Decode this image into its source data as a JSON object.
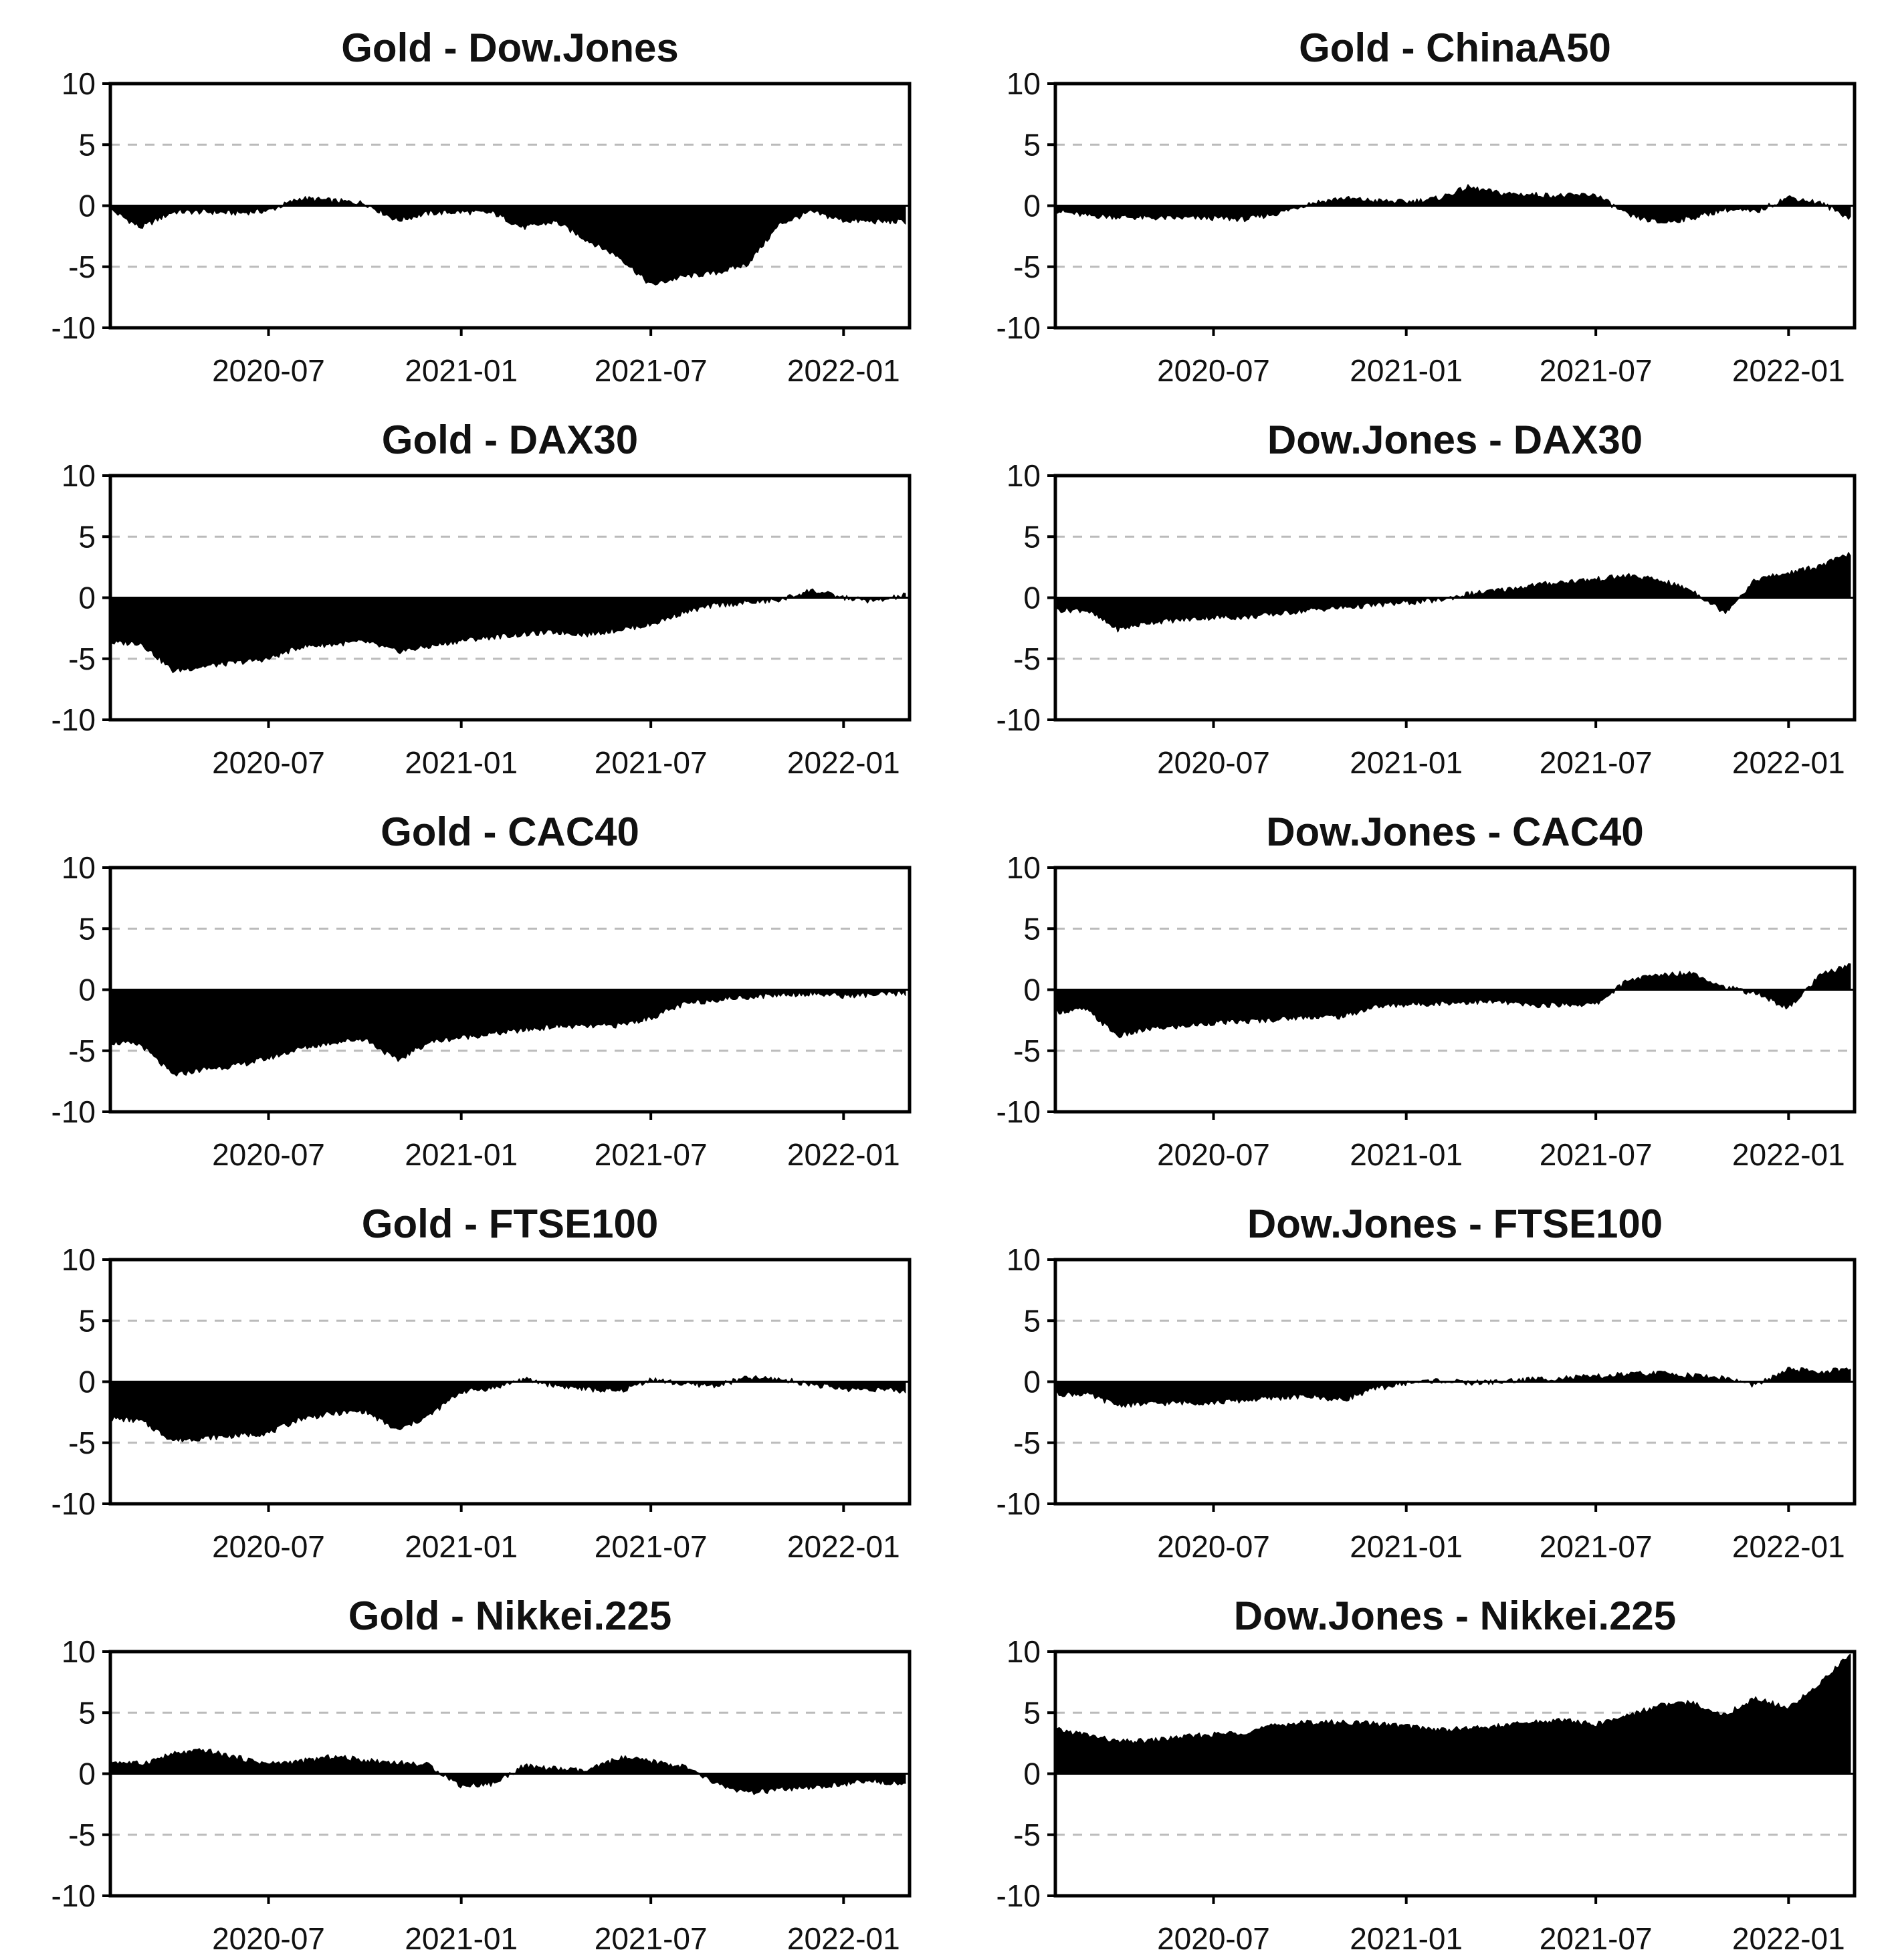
{
  "figure": {
    "yticks": [
      10,
      5,
      0,
      -5,
      -10
    ],
    "xticks": [
      "2020-07",
      "2021-01",
      "2021-07",
      "2022-01"
    ]
  },
  "chart_data": [
    {
      "type": "area",
      "title": "Gold - Dow.Jones",
      "x_range": [
        "2020-02",
        "2022-03"
      ],
      "ylim": [
        -10,
        10
      ],
      "grid": "dashed at ±5",
      "x": [
        "2020-02",
        "2020-03",
        "2020-04",
        "2020-05",
        "2020-06",
        "2020-07",
        "2020-08",
        "2020-09",
        "2020-10",
        "2020-11",
        "2020-12",
        "2021-01",
        "2021-02",
        "2021-03",
        "2021-04",
        "2021-05",
        "2021-06",
        "2021-07",
        "2021-08",
        "2021-09",
        "2021-10",
        "2021-11",
        "2021-12",
        "2022-01",
        "2022-02",
        "2022-03"
      ],
      "values": [
        -0.3,
        -1.8,
        -0.5,
        -0.5,
        -0.6,
        -0.4,
        0.6,
        0.4,
        0.2,
        -1.2,
        -0.6,
        -0.5,
        -0.6,
        -1.8,
        -1.3,
        -2.8,
        -4.2,
        -6.5,
        -5.8,
        -5.5,
        -4.8,
        -1.5,
        -0.5,
        -1.2,
        -1.3,
        -1.3
      ]
    },
    {
      "type": "area",
      "title": "Gold - ChinaA50",
      "x_range": [
        "2020-02",
        "2022-03"
      ],
      "ylim": [
        -10,
        10
      ],
      "grid": "dashed at ±5",
      "x": [
        "2020-02",
        "2020-03",
        "2020-04",
        "2020-05",
        "2020-06",
        "2020-07",
        "2020-08",
        "2020-09",
        "2020-10",
        "2020-11",
        "2020-12",
        "2021-01",
        "2021-02",
        "2021-03",
        "2021-04",
        "2021-05",
        "2021-06",
        "2021-07",
        "2021-08",
        "2021-09",
        "2021-10",
        "2021-11",
        "2021-12",
        "2022-01",
        "2022-02",
        "2022-03"
      ],
      "values": [
        -0.4,
        -0.8,
        -0.9,
        -1.0,
        -1.0,
        -1.0,
        -1.1,
        -0.6,
        0.2,
        0.6,
        0.4,
        0.3,
        0.6,
        1.5,
        1.0,
        0.9,
        0.8,
        0.9,
        -0.8,
        -1.4,
        -1.0,
        -0.3,
        -0.5,
        0.7,
        0.2,
        -1.0
      ]
    },
    {
      "type": "area",
      "title": "Gold - DAX30",
      "x_range": [
        "2020-02",
        "2022-03"
      ],
      "ylim": [
        -10,
        10
      ],
      "grid": "dashed at ±5",
      "x": [
        "2020-02",
        "2020-03",
        "2020-04",
        "2020-05",
        "2020-06",
        "2020-07",
        "2020-08",
        "2020-09",
        "2020-10",
        "2020-11",
        "2020-12",
        "2021-01",
        "2021-02",
        "2021-03",
        "2021-04",
        "2021-05",
        "2021-06",
        "2021-07",
        "2021-08",
        "2021-09",
        "2021-10",
        "2021-11",
        "2021-12",
        "2022-01",
        "2022-02",
        "2022-03"
      ],
      "values": [
        -3.7,
        -3.7,
        -6.0,
        -5.6,
        -5.3,
        -5.0,
        -4.0,
        -3.8,
        -3.6,
        -4.4,
        -4.0,
        -3.5,
        -3.2,
        -3.0,
        -2.8,
        -3.0,
        -2.6,
        -2.2,
        -1.2,
        -0.6,
        -0.4,
        -0.2,
        0.6,
        0.0,
        -0.3,
        0.2
      ]
    },
    {
      "type": "area",
      "title": "Dow.Jones - DAX30",
      "x_range": [
        "2020-02",
        "2022-03"
      ],
      "ylim": [
        -10,
        10
      ],
      "grid": "dashed at ±5",
      "x": [
        "2020-02",
        "2020-03",
        "2020-04",
        "2020-05",
        "2020-06",
        "2020-07",
        "2020-08",
        "2020-09",
        "2020-10",
        "2020-11",
        "2020-12",
        "2021-01",
        "2021-02",
        "2021-03",
        "2021-04",
        "2021-05",
        "2021-06",
        "2021-07",
        "2021-08",
        "2021-09",
        "2021-10",
        "2021-11",
        "2021-12",
        "2022-01",
        "2022-02",
        "2022-03"
      ],
      "values": [
        -1.0,
        -1.0,
        -2.6,
        -2.0,
        -1.8,
        -1.6,
        -1.6,
        -1.3,
        -1.0,
        -0.8,
        -0.6,
        -0.4,
        -0.2,
        0.3,
        0.6,
        1.0,
        1.3,
        1.5,
        1.8,
        1.4,
        0.6,
        -1.2,
        1.5,
        2.0,
        2.6,
        3.6
      ]
    },
    {
      "type": "area",
      "title": "Gold - CAC40",
      "x_range": [
        "2020-02",
        "2022-03"
      ],
      "ylim": [
        -10,
        10
      ],
      "grid": "dashed at ±5",
      "x": [
        "2020-02",
        "2020-03",
        "2020-04",
        "2020-05",
        "2020-06",
        "2020-07",
        "2020-08",
        "2020-09",
        "2020-10",
        "2020-11",
        "2020-12",
        "2021-01",
        "2021-02",
        "2021-03",
        "2021-04",
        "2021-05",
        "2021-06",
        "2021-07",
        "2021-08",
        "2021-09",
        "2021-10",
        "2021-11",
        "2021-12",
        "2022-01",
        "2022-02",
        "2022-03"
      ],
      "values": [
        -4.3,
        -4.5,
        -7.0,
        -6.5,
        -6.2,
        -5.6,
        -4.8,
        -4.3,
        -4.0,
        -5.8,
        -4.3,
        -3.9,
        -3.6,
        -3.3,
        -3.0,
        -3.0,
        -2.9,
        -2.3,
        -1.2,
        -0.8,
        -0.6,
        -0.4,
        -0.3,
        -0.5,
        -0.4,
        -0.3
      ]
    },
    {
      "type": "area",
      "title": "Dow.Jones - CAC40",
      "x_range": [
        "2020-02",
        "2022-03"
      ],
      "ylim": [
        -10,
        10
      ],
      "grid": "dashed at ±5",
      "x": [
        "2020-02",
        "2020-03",
        "2020-04",
        "2020-05",
        "2020-06",
        "2020-07",
        "2020-08",
        "2020-09",
        "2020-10",
        "2020-11",
        "2020-12",
        "2021-01",
        "2021-02",
        "2021-03",
        "2021-04",
        "2021-05",
        "2021-06",
        "2021-07",
        "2021-08",
        "2021-09",
        "2021-10",
        "2021-11",
        "2021-12",
        "2022-01",
        "2022-02",
        "2022-03"
      ],
      "values": [
        -1.8,
        -1.6,
        -3.8,
        -3.2,
        -3.0,
        -2.7,
        -2.6,
        -2.4,
        -2.2,
        -2.2,
        -1.4,
        -1.2,
        -1.1,
        -1.0,
        -1.0,
        -1.3,
        -1.2,
        -1.2,
        0.8,
        1.2,
        1.4,
        0.2,
        -0.3,
        -1.5,
        1.2,
        2.0
      ]
    },
    {
      "type": "area",
      "title": "Gold - FTSE100",
      "x_range": [
        "2020-02",
        "2022-03"
      ],
      "ylim": [
        -10,
        10
      ],
      "grid": "dashed at ±5",
      "x": [
        "2020-02",
        "2020-03",
        "2020-04",
        "2020-05",
        "2020-06",
        "2020-07",
        "2020-08",
        "2020-09",
        "2020-10",
        "2020-11",
        "2020-12",
        "2021-01",
        "2021-02",
        "2021-03",
        "2021-04",
        "2021-05",
        "2021-06",
        "2021-07",
        "2021-08",
        "2021-09",
        "2021-10",
        "2021-11",
        "2021-12",
        "2022-01",
        "2022-02",
        "2022-03"
      ],
      "values": [
        -3.0,
        -3.2,
        -4.8,
        -4.6,
        -4.4,
        -4.2,
        -3.0,
        -2.6,
        -2.4,
        -4.0,
        -2.8,
        -0.8,
        -0.5,
        0.2,
        -0.3,
        -0.6,
        -0.8,
        0.2,
        -0.2,
        -0.3,
        0.3,
        0.2,
        -0.2,
        -0.6,
        -0.6,
        -0.8
      ]
    },
    {
      "type": "area",
      "title": "Dow.Jones - FTSE100",
      "x_range": [
        "2020-02",
        "2022-03"
      ],
      "ylim": [
        -10,
        10
      ],
      "grid": "dashed at ±5",
      "x": [
        "2020-02",
        "2020-03",
        "2020-04",
        "2020-05",
        "2020-06",
        "2020-07",
        "2020-08",
        "2020-09",
        "2020-10",
        "2020-11",
        "2020-12",
        "2021-01",
        "2021-02",
        "2021-03",
        "2021-04",
        "2021-05",
        "2021-06",
        "2021-07",
        "2021-08",
        "2021-09",
        "2021-10",
        "2021-11",
        "2021-12",
        "2022-01",
        "2022-02",
        "2022-03"
      ],
      "values": [
        -1.0,
        -1.0,
        -1.9,
        -1.8,
        -1.7,
        -1.7,
        -1.5,
        -1.3,
        -1.2,
        -1.5,
        -0.6,
        -0.1,
        0.1,
        -0.1,
        0.0,
        0.2,
        0.3,
        0.4,
        0.6,
        0.7,
        0.5,
        0.3,
        -0.3,
        1.0,
        0.8,
        1.0
      ]
    },
    {
      "type": "area",
      "title": "Gold - Nikkei.225",
      "x_range": [
        "2020-02",
        "2022-03"
      ],
      "ylim": [
        -10,
        10
      ],
      "grid": "dashed at ±5",
      "x": [
        "2020-02",
        "2020-03",
        "2020-04",
        "2020-05",
        "2020-06",
        "2020-07",
        "2020-08",
        "2020-09",
        "2020-10",
        "2020-11",
        "2020-12",
        "2021-01",
        "2021-02",
        "2021-03",
        "2021-04",
        "2021-05",
        "2021-06",
        "2021-07",
        "2021-08",
        "2021-09",
        "2021-10",
        "2021-11",
        "2021-12",
        "2022-01",
        "2022-02",
        "2022-03"
      ],
      "values": [
        1.0,
        0.8,
        1.6,
        1.9,
        1.3,
        0.8,
        1.0,
        1.4,
        1.1,
        0.9,
        0.7,
        -1.0,
        -0.8,
        0.6,
        0.4,
        0.2,
        1.3,
        1.0,
        0.6,
        -0.8,
        -1.6,
        -1.3,
        -1.2,
        -0.8,
        -0.6,
        -0.8
      ]
    },
    {
      "type": "area",
      "title": "Dow.Jones - Nikkei.225",
      "x_range": [
        "2020-02",
        "2022-03"
      ],
      "ylim": [
        -10,
        10
      ],
      "grid": "dashed at ±5",
      "x": [
        "2020-02",
        "2020-03",
        "2020-04",
        "2020-05",
        "2020-06",
        "2020-07",
        "2020-08",
        "2020-09",
        "2020-10",
        "2020-11",
        "2020-12",
        "2021-01",
        "2021-02",
        "2021-03",
        "2021-04",
        "2021-05",
        "2021-06",
        "2021-07",
        "2021-08",
        "2021-09",
        "2021-10",
        "2021-11",
        "2021-12",
        "2022-01",
        "2022-02",
        "2022-03"
      ],
      "values": [
        3.6,
        3.2,
        2.6,
        2.7,
        3.0,
        3.2,
        3.4,
        4.0,
        4.2,
        4.2,
        4.1,
        3.9,
        3.6,
        3.7,
        3.9,
        4.2,
        4.4,
        4.0,
        4.8,
        5.6,
        5.8,
        4.8,
        6.2,
        5.3,
        7.5,
        9.8
      ]
    }
  ]
}
